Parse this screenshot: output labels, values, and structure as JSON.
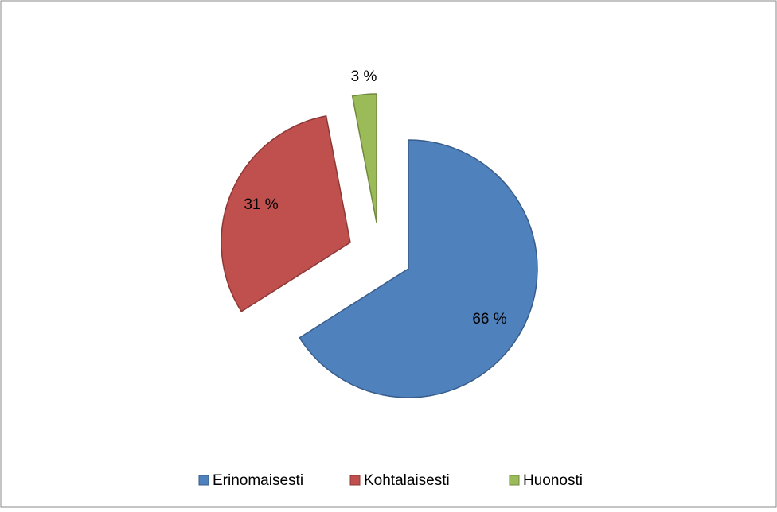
{
  "chart_data": {
    "type": "pie",
    "categories": [
      "Erinomaisesti",
      "Kohtalaisesti",
      "Huonosti"
    ],
    "values": [
      66,
      31,
      3
    ],
    "value_labels": [
      "66 %",
      "31 %",
      "3 %"
    ],
    "colors": [
      "#4f81bd",
      "#c0504d",
      "#9bbb59"
    ],
    "legend": "bottom"
  }
}
